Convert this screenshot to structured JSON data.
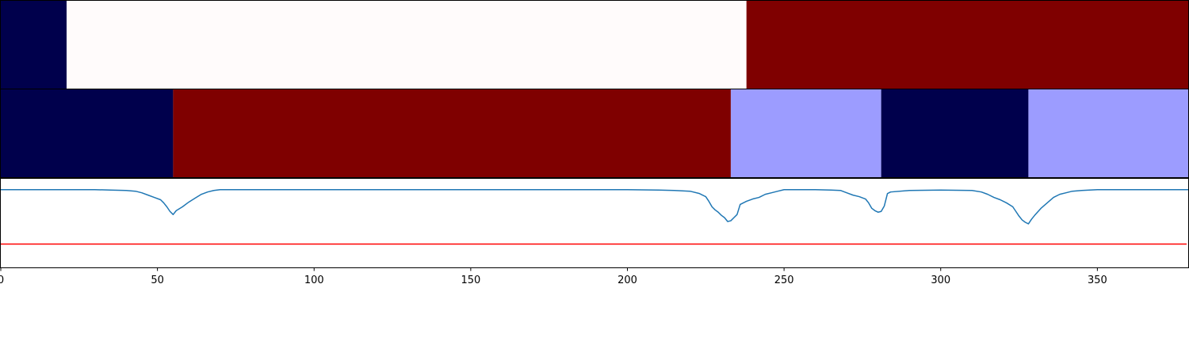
{
  "chart_data": {
    "type": "segmentation-timeline",
    "xlim": [
      0,
      379
    ],
    "xticks": [
      0,
      50,
      100,
      150,
      200,
      250,
      300,
      350
    ],
    "xtick_labels": [
      "0",
      "50",
      "100",
      "150",
      "200",
      "250",
      "300",
      "350"
    ],
    "title": "",
    "xlabel": "",
    "ylabel": "",
    "tracks": [
      {
        "segments": [
          {
            "start": 0,
            "end": 21,
            "color": "#00004c"
          },
          {
            "start": 21,
            "end": 238,
            "color": "#fffbfb"
          },
          {
            "start": 238,
            "end": 379,
            "color": "#7f0000"
          }
        ]
      },
      {
        "segments": [
          {
            "start": 0,
            "end": 55,
            "color": "#00004c"
          },
          {
            "start": 55,
            "end": 233,
            "color": "#7f0000"
          },
          {
            "start": 233,
            "end": 281,
            "color": "#9c9cff"
          },
          {
            "start": 281,
            "end": 328,
            "color": "#00004c"
          },
          {
            "start": 328,
            "end": 379,
            "color": "#9c9cff"
          }
        ]
      }
    ],
    "signal": {
      "color": "#1f77b4",
      "ylim": [
        -1.0,
        0.15
      ],
      "x": [
        0,
        30,
        35,
        40,
        43,
        45,
        47,
        49,
        51,
        52,
        53,
        54,
        55,
        56,
        58,
        60,
        62,
        64,
        66,
        68,
        70,
        75,
        200,
        210,
        215,
        220,
        223,
        225,
        226,
        227,
        228,
        229,
        230,
        231,
        232,
        233,
        234,
        235,
        236,
        237,
        238,
        240,
        242,
        244,
        246,
        248,
        250,
        255,
        260,
        265,
        268,
        270,
        272,
        274,
        276,
        277,
        278,
        279,
        280,
        281,
        282,
        283,
        284,
        290,
        300,
        310,
        313,
        315,
        317,
        319,
        321,
        323,
        324,
        325,
        326,
        327,
        328,
        329,
        330,
        332,
        334,
        336,
        338,
        340,
        342,
        345,
        350,
        360,
        379
      ],
      "y": [
        0.0,
        0.0,
        -0.005,
        -0.01,
        -0.02,
        -0.04,
        -0.07,
        -0.1,
        -0.13,
        -0.17,
        -0.22,
        -0.28,
        -0.32,
        -0.27,
        -0.22,
        -0.16,
        -0.11,
        -0.06,
        -0.03,
        -0.01,
        0.0,
        0.0,
        0.0,
        -0.005,
        -0.01,
        -0.02,
        -0.05,
        -0.09,
        -0.15,
        -0.22,
        -0.26,
        -0.29,
        -0.33,
        -0.36,
        -0.41,
        -0.4,
        -0.36,
        -0.32,
        -0.19,
        -0.17,
        -0.15,
        -0.12,
        -0.1,
        -0.06,
        -0.04,
        -0.02,
        0.0,
        0.0,
        0.0,
        -0.005,
        -0.01,
        -0.04,
        -0.07,
        -0.09,
        -0.12,
        -0.17,
        -0.24,
        -0.27,
        -0.29,
        -0.28,
        -0.21,
        -0.05,
        -0.03,
        -0.01,
        -0.005,
        -0.01,
        -0.03,
        -0.06,
        -0.1,
        -0.13,
        -0.17,
        -0.22,
        -0.28,
        -0.34,
        -0.39,
        -0.42,
        -0.44,
        -0.38,
        -0.33,
        -0.24,
        -0.17,
        -0.1,
        -0.06,
        -0.04,
        -0.02,
        -0.01,
        0.0,
        0.0,
        0.0
      ]
    },
    "threshold": {
      "value": -0.7,
      "color": "#ff0000"
    },
    "grid": false,
    "legend": "none"
  }
}
